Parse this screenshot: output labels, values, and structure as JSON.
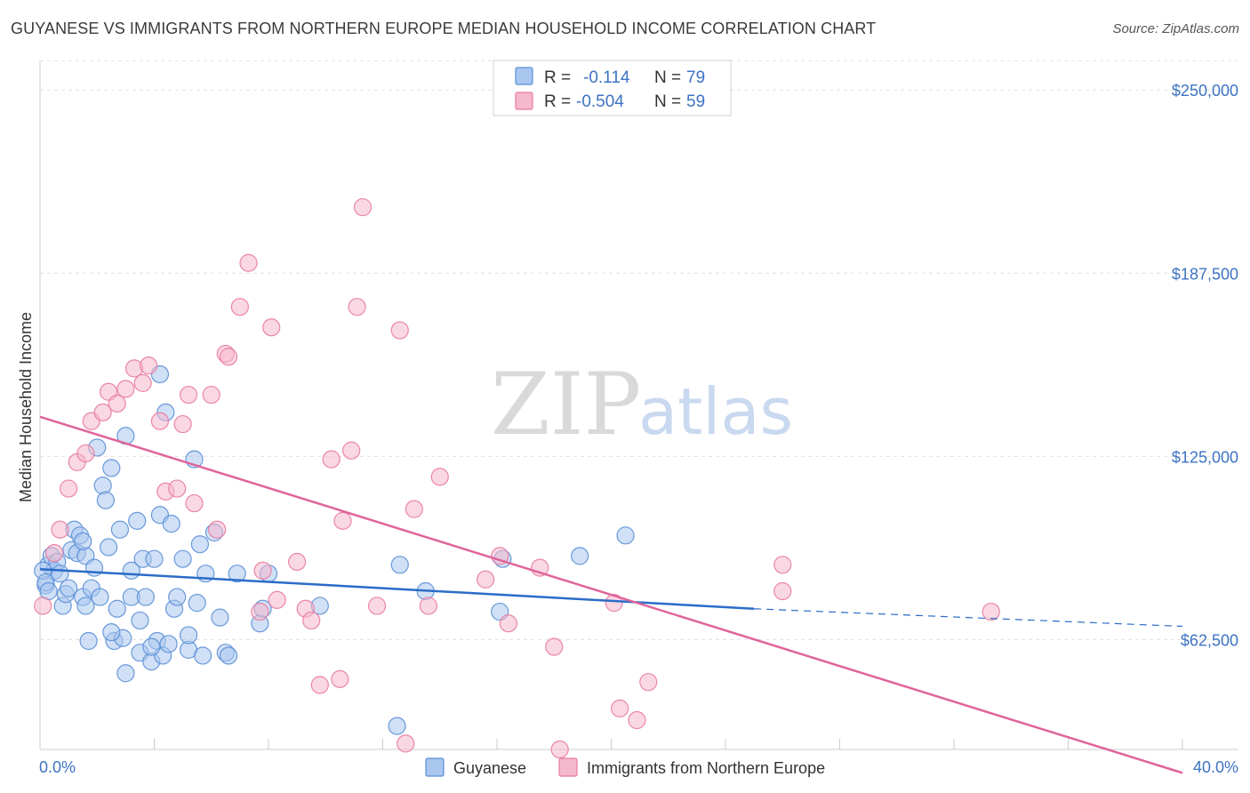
{
  "title": "GUYANESE VS IMMIGRANTS FROM NORTHERN EUROPE MEDIAN HOUSEHOLD INCOME CORRELATION CHART",
  "source": "Source: ZipAtlas.com",
  "watermark": {
    "zip": "ZIP",
    "atlas": "atlas"
  },
  "colors": {
    "blue": "#5b8fd6",
    "blue_fill": "#a9c6ee",
    "pink": "#e87aa0",
    "pink_fill": "#f5b8cc",
    "blue_line": "#2a6cc8",
    "pink_line": "#e0649a"
  },
  "legend": {
    "rows": [
      {
        "r_label": "R =",
        "r_value": "-0.114",
        "n_label": "N =",
        "n_value": "79"
      },
      {
        "r_label": "R =",
        "r_value": "-0.504",
        "n_label": "N =",
        "n_value": "59"
      }
    ]
  },
  "chart_data": {
    "type": "scatter",
    "title": "GUYANESE VS IMMIGRANTS FROM NORTHERN EUROPE MEDIAN HOUSEHOLD INCOME CORRELATION CHART",
    "xlabel": "",
    "ylabel": "Median Household Income",
    "xlim": [
      0,
      40
    ],
    "ylim": [
      25000,
      262500
    ],
    "x_tick_labels": [
      "0.0%",
      "40.0%"
    ],
    "y_ticks": [
      62500,
      125000,
      187500,
      250000
    ],
    "y_tick_labels": [
      "$62,500",
      "$125,000",
      "$187,500",
      "$250,000"
    ],
    "grid": true,
    "legend_position": "top-center",
    "series": [
      {
        "name": "Guyanese",
        "color": "#5b8fd6",
        "trend": {
          "x": [
            0,
            25
          ],
          "y": [
            86500,
            73000
          ],
          "dashed_to_x": 40,
          "dashed_y": 67000
        },
        "points": [
          [
            0.2,
            81000
          ],
          [
            0.3,
            88000
          ],
          [
            0.4,
            91000
          ],
          [
            0.5,
            86000
          ],
          [
            0.6,
            89000
          ],
          [
            0.7,
            85000
          ],
          [
            0.8,
            74000
          ],
          [
            0.9,
            78000
          ],
          [
            1.0,
            80000
          ],
          [
            1.1,
            93000
          ],
          [
            1.2,
            100000
          ],
          [
            1.3,
            92000
          ],
          [
            1.4,
            98000
          ],
          [
            1.5,
            77000
          ],
          [
            1.6,
            91000
          ],
          [
            1.6,
            74000
          ],
          [
            1.7,
            62000
          ],
          [
            1.8,
            80000
          ],
          [
            1.9,
            87000
          ],
          [
            2.0,
            128000
          ],
          [
            2.1,
            77000
          ],
          [
            2.2,
            115000
          ],
          [
            2.3,
            110000
          ],
          [
            2.4,
            94000
          ],
          [
            2.5,
            121000
          ],
          [
            2.6,
            62000
          ],
          [
            2.7,
            73000
          ],
          [
            2.8,
            100000
          ],
          [
            2.9,
            63000
          ],
          [
            3.0,
            51000
          ],
          [
            3.0,
            132000
          ],
          [
            3.2,
            86000
          ],
          [
            3.2,
            77000
          ],
          [
            3.4,
            103000
          ],
          [
            3.5,
            69000
          ],
          [
            3.5,
            58000
          ],
          [
            3.6,
            90000
          ],
          [
            3.7,
            77000
          ],
          [
            3.9,
            55000
          ],
          [
            4.0,
            90000
          ],
          [
            4.1,
            62000
          ],
          [
            4.2,
            105000
          ],
          [
            4.3,
            57000
          ],
          [
            4.2,
            153000
          ],
          [
            4.4,
            140000
          ],
          [
            4.5,
            61000
          ],
          [
            4.6,
            102000
          ],
          [
            4.7,
            73000
          ],
          [
            4.8,
            77000
          ],
          [
            5.0,
            90000
          ],
          [
            5.2,
            59000
          ],
          [
            5.2,
            64000
          ],
          [
            5.4,
            124000
          ],
          [
            5.5,
            75000
          ],
          [
            5.6,
            95000
          ],
          [
            5.7,
            57000
          ],
          [
            5.8,
            85000
          ],
          [
            6.1,
            99000
          ],
          [
            6.3,
            70000
          ],
          [
            6.5,
            58000
          ],
          [
            6.6,
            57000
          ],
          [
            6.9,
            85000
          ],
          [
            7.7,
            68000
          ],
          [
            7.8,
            73000
          ],
          [
            8.0,
            85000
          ],
          [
            9.8,
            74000
          ],
          [
            12.5,
            33000
          ],
          [
            12.6,
            88000
          ],
          [
            13.5,
            79000
          ],
          [
            16.1,
            72000
          ],
          [
            16.2,
            90000
          ],
          [
            18.9,
            91000
          ],
          [
            20.5,
            98000
          ],
          [
            0.1,
            86000
          ],
          [
            0.2,
            82000
          ],
          [
            0.3,
            79000
          ],
          [
            1.5,
            96000
          ],
          [
            2.5,
            65000
          ],
          [
            3.9,
            60000
          ]
        ]
      },
      {
        "name": "Immigrants from Northern Europe",
        "color": "#e87aa0",
        "trend": {
          "x": [
            0,
            40
          ],
          "y": [
            138500,
            17000
          ]
        },
        "points": [
          [
            0.1,
            74000
          ],
          [
            0.5,
            92000
          ],
          [
            0.7,
            100000
          ],
          [
            1.0,
            114000
          ],
          [
            1.3,
            123000
          ],
          [
            1.6,
            126000
          ],
          [
            1.8,
            137000
          ],
          [
            2.2,
            140000
          ],
          [
            2.4,
            147000
          ],
          [
            2.7,
            143000
          ],
          [
            3.0,
            148000
          ],
          [
            3.3,
            155000
          ],
          [
            3.6,
            150000
          ],
          [
            3.8,
            156000
          ],
          [
            4.2,
            137000
          ],
          [
            4.4,
            113000
          ],
          [
            4.8,
            114000
          ],
          [
            5.0,
            136000
          ],
          [
            5.2,
            146000
          ],
          [
            5.4,
            109000
          ],
          [
            6.0,
            146000
          ],
          [
            6.2,
            100000
          ],
          [
            6.5,
            160000
          ],
          [
            6.6,
            159000
          ],
          [
            7.0,
            176000
          ],
          [
            7.3,
            191000
          ],
          [
            7.7,
            72000
          ],
          [
            7.8,
            86000
          ],
          [
            8.1,
            169000
          ],
          [
            8.3,
            76000
          ],
          [
            9.0,
            89000
          ],
          [
            9.3,
            73000
          ],
          [
            9.5,
            69000
          ],
          [
            9.8,
            47000
          ],
          [
            10.2,
            124000
          ],
          [
            10.5,
            49000
          ],
          [
            10.6,
            103000
          ],
          [
            10.9,
            127000
          ],
          [
            11.1,
            176000
          ],
          [
            11.3,
            210000
          ],
          [
            11.8,
            74000
          ],
          [
            12.6,
            168000
          ],
          [
            12.8,
            27000
          ],
          [
            13.1,
            107000
          ],
          [
            13.6,
            74000
          ],
          [
            14.0,
            118000
          ],
          [
            15.6,
            83000
          ],
          [
            16.1,
            91000
          ],
          [
            16.4,
            68000
          ],
          [
            17.5,
            87000
          ],
          [
            18.0,
            60000
          ],
          [
            18.2,
            25000
          ],
          [
            20.1,
            75000
          ],
          [
            20.3,
            39000
          ],
          [
            20.9,
            35000
          ],
          [
            21.3,
            48000
          ],
          [
            26.0,
            88000
          ],
          [
            26.0,
            79000
          ],
          [
            33.3,
            72000
          ]
        ]
      }
    ]
  },
  "bottom_legend": [
    {
      "label": "Guyanese"
    },
    {
      "label": "Immigrants from Northern Europe"
    }
  ]
}
